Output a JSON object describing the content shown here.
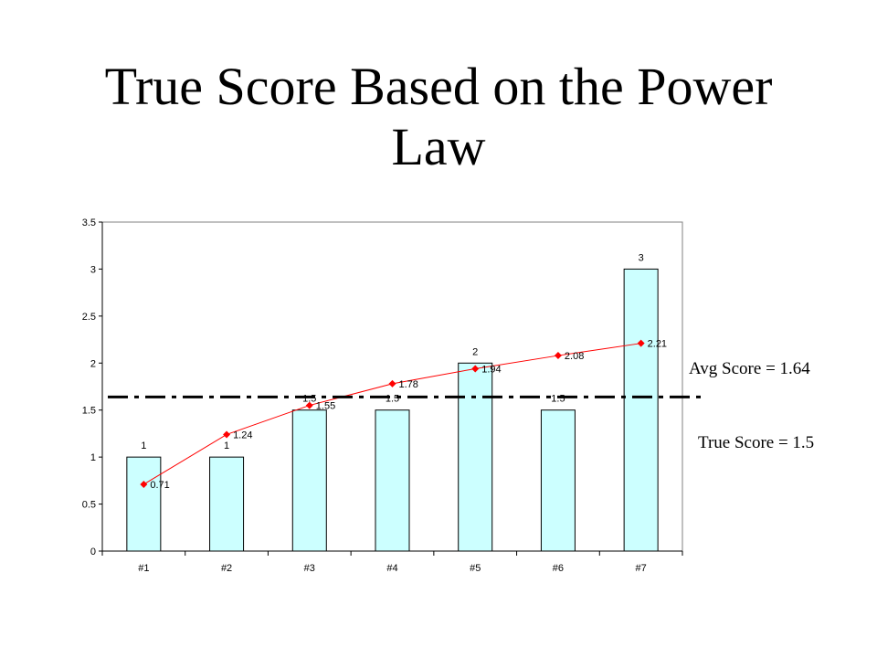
{
  "slide": {
    "title_line1": "True Score Based on the Power",
    "title_line2": "Law",
    "avg_label": "Avg Score = 1.64",
    "true_label": "True Score = 1.5"
  },
  "chart_data": {
    "type": "bar",
    "title": "True Score Based on the Power Law",
    "categories": [
      "#1",
      "#2",
      "#3",
      "#4",
      "#5",
      "#6",
      "#7"
    ],
    "series": [
      {
        "type": "bar",
        "values": [
          1,
          1,
          1.5,
          1.5,
          2,
          1.5,
          3
        ],
        "color": "#ccffff",
        "data_labels": [
          "1",
          "1",
          "1.5",
          "1.5",
          "2",
          "1.5",
          "3"
        ]
      },
      {
        "type": "line",
        "values": [
          0.71,
          1.24,
          1.55,
          1.78,
          1.94,
          2.08,
          2.21
        ],
        "color": "#ff0000",
        "marker": "diamond",
        "data_labels": [
          "0.71",
          "1.24",
          "1.55",
          "1.78",
          "1.94",
          "2.08",
          "2.21"
        ]
      }
    ],
    "reference_line": {
      "value": 1.64,
      "style": "dash-dot",
      "color": "#000000"
    },
    "xlabel": "",
    "ylabel": "",
    "ylim": [
      0,
      3.5
    ],
    "yticks": [
      0,
      0.5,
      1,
      1.5,
      2,
      2.5,
      3,
      3.5
    ],
    "ytick_labels": [
      "0",
      "0.5",
      "1",
      "1.5",
      "2",
      "2.5",
      "3",
      "3.5"
    ],
    "grid": false,
    "legend": "none"
  }
}
